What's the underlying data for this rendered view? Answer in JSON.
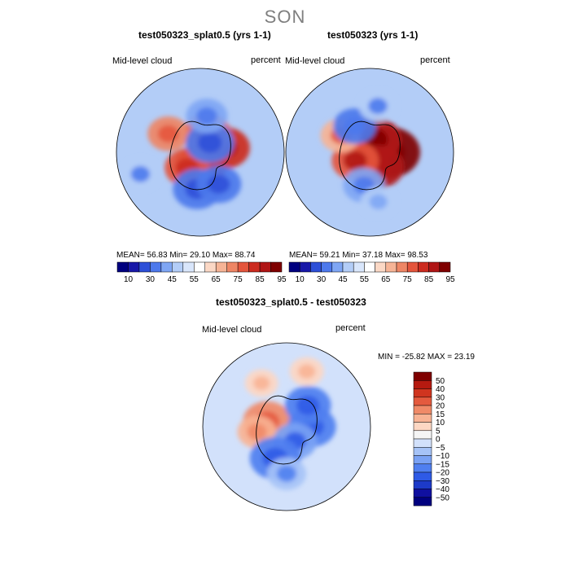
{
  "figure": {
    "season": "SON"
  },
  "panels": {
    "left": {
      "title": "test050323_splat0.5 (yrs 1-1)",
      "field": "Mid-level cloud",
      "units": "percent",
      "stats": "MEAN=  56.83   Min=  29.10   Max=  88.74"
    },
    "right": {
      "title": "test050323 (yrs 1-1)",
      "field": "Mid-level cloud",
      "units": "percent",
      "stats": "MEAN=  59.21   Min=  37.18   Max=  98.53"
    },
    "diff": {
      "title": "test050323_splat0.5 - test050323",
      "field": "Mid-level cloud",
      "units": "percent",
      "minmax": "MIN = -25.82 MAX =  23.19"
    }
  },
  "colors": {
    "abs_scale": [
      "#00007f",
      "#1818a8",
      "#2d4fd8",
      "#4d79ec",
      "#7fa6f4",
      "#b3cdf7",
      "#d9e6fb",
      "#ffffff",
      "#fbd8c5",
      "#f6b496",
      "#ee8665",
      "#e4553c",
      "#cc2b1f",
      "#b01515",
      "#7f0000"
    ],
    "diff_scale": [
      "#00007f",
      "#1010a0",
      "#1d3ac8",
      "#2e5ae6",
      "#4f7ff0",
      "#7aa2f4",
      "#a6c3f7",
      "#d2e1fb",
      "#f5f5f5",
      "#fdd7c3",
      "#f8b394",
      "#f08a68",
      "#e45a3e",
      "#d0351f",
      "#b51a10",
      "#7f0000"
    ]
  },
  "chart_data": [
    {
      "type": "heatmap",
      "title": "test050323_splat0.5 (yrs 1-1)",
      "variable": "Mid-level cloud",
      "units": "percent",
      "projection": "south polar stereographic",
      "mean": 56.83,
      "min": 29.1,
      "max": 88.74,
      "colorbar_labels": [
        "10",
        "30",
        "45",
        "55",
        "65",
        "75",
        "85",
        "95"
      ],
      "blobs": [
        {
          "lon": 180,
          "lat": -82,
          "value": 85
        },
        {
          "lon": 80,
          "lat": -75,
          "value": 82
        },
        {
          "lon": 20,
          "lat": -78,
          "value": 78
        },
        {
          "lon": -140,
          "lat": -78,
          "value": 76
        },
        {
          "lon": -60,
          "lat": -68,
          "value": 70
        },
        {
          "lon": 45,
          "lat": -82,
          "value": 30
        },
        {
          "lon": -175,
          "lat": -68,
          "value": 30
        },
        {
          "lon": 150,
          "lat": -68,
          "value": 35
        },
        {
          "lon": 10,
          "lat": -68,
          "value": 40
        },
        {
          "lon": -110,
          "lat": -52,
          "value": 45
        }
      ]
    },
    {
      "type": "heatmap",
      "title": "test050323 (yrs 1-1)",
      "variable": "Mid-level cloud",
      "units": "percent",
      "projection": "south polar stereographic",
      "mean": 59.21,
      "min": 37.18,
      "max": 98.53,
      "colorbar_labels": [
        "10",
        "30",
        "45",
        "55",
        "65",
        "75",
        "85",
        "95"
      ],
      "blobs": [
        {
          "lon": 90,
          "lat": -78,
          "value": 98
        },
        {
          "lon": 20,
          "lat": -82,
          "value": 88
        },
        {
          "lon": 150,
          "lat": -80,
          "value": 85
        },
        {
          "lon": -120,
          "lat": -80,
          "value": 78
        },
        {
          "lon": -60,
          "lat": -70,
          "value": 68
        },
        {
          "lon": -30,
          "lat": -72,
          "value": 38
        },
        {
          "lon": -170,
          "lat": -70,
          "value": 40
        },
        {
          "lon": 10,
          "lat": -62,
          "value": 45
        },
        {
          "lon": 170,
          "lat": -60,
          "value": 48
        }
      ]
    },
    {
      "type": "heatmap",
      "title": "test050323_splat0.5 - test050323",
      "variable": "Mid-level cloud",
      "units": "percent",
      "projection": "south polar stereographic",
      "min": -25.82,
      "max": 23.19,
      "colorbar_labels": [
        "50",
        "40",
        "30",
        "20",
        "15",
        "10",
        "5",
        "0",
        "−5",
        "−10",
        "−15",
        "−20",
        "−30",
        "−40",
        "−50"
      ],
      "blobs": [
        {
          "lon": -75,
          "lat": -78,
          "value": 18
        },
        {
          "lon": -100,
          "lat": -72,
          "value": 10
        },
        {
          "lon": 90,
          "lat": -75,
          "value": -18
        },
        {
          "lon": 45,
          "lat": -72,
          "value": -16
        },
        {
          "lon": 150,
          "lat": -80,
          "value": -14
        },
        {
          "lon": -160,
          "lat": -70,
          "value": -20
        },
        {
          "lon": 180,
          "lat": -62,
          "value": -10
        },
        {
          "lon": 20,
          "lat": -55,
          "value": 6
        },
        {
          "lon": -30,
          "lat": -60,
          "value": 5
        }
      ]
    }
  ]
}
